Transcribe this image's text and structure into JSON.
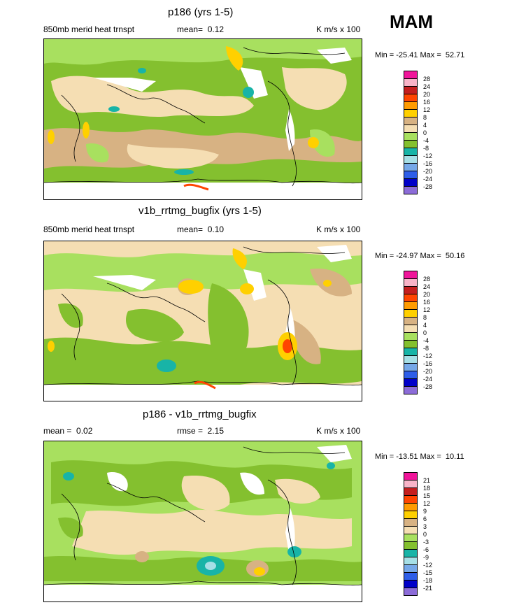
{
  "season": "MAM",
  "colors": [
    "#f0159a",
    "#f8b4c8",
    "#c41e1e",
    "#ff4500",
    "#ff9b00",
    "#ffd000",
    "#d7b283",
    "#f5deb3",
    "#a8e05f",
    "#84c02f",
    "#18b4a7",
    "#a6dfe6",
    "#76a8e8",
    "#2e5ee8",
    "#0000c8",
    "#8c6cd8"
  ],
  "panels": [
    {
      "title": "p186 (yrs 1-5)",
      "left_label": "850mb merid heat trnspt",
      "mid_label": "mean=  0.12",
      "units": "K m/s x 100",
      "minmax": "Min = -25.41 Max =  52.71",
      "levels": [
        "28",
        "24",
        "20",
        "16",
        "12",
        "8",
        "4",
        "0",
        "-4",
        "-8",
        "-12",
        "-16",
        "-20",
        "-24",
        "-28"
      ]
    },
    {
      "title": "v1b_rrtmg_bugfix (yrs 1-5)",
      "left_label": "850mb merid heat trnspt",
      "mid_label": "mean=  0.10",
      "units": "K m/s x 100",
      "minmax": "Min = -24.97 Max =  50.16",
      "levels": [
        "28",
        "24",
        "20",
        "16",
        "12",
        "8",
        "4",
        "0",
        "-4",
        "-8",
        "-12",
        "-16",
        "-20",
        "-24",
        "-28"
      ]
    },
    {
      "title": "p186 - v1b_rrtmg_bugfix",
      "left_label": "mean =  0.02",
      "mid_label": "rmse =  2.15",
      "units": "K m/s x 100",
      "minmax": "Min = -13.51 Max =  10.11",
      "levels": [
        "21",
        "18",
        "15",
        "12",
        "9",
        "6",
        "3",
        "0",
        "-3",
        "-6",
        "-9",
        "-12",
        "-15",
        "-18",
        "-21"
      ]
    }
  ]
}
